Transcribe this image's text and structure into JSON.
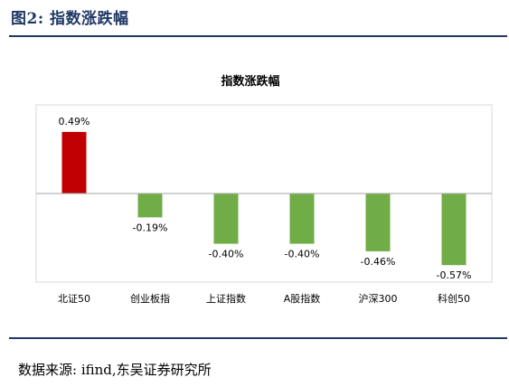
{
  "figure_label": "图2:  指数涨跌幅",
  "source_text": "数据来源:  ifind,东吴证券研究所",
  "chart_data": {
    "type": "bar",
    "title": "指数涨跌幅",
    "categories": [
      "北证50",
      "创业板指",
      "上证指数",
      "A股指数",
      "沪深300",
      "科创50"
    ],
    "values": [
      0.49,
      -0.19,
      -0.4,
      -0.4,
      -0.46,
      -0.57
    ],
    "data_labels": [
      "0.49%",
      "-0.19%",
      "-0.40%",
      "-0.40%",
      "-0.46%",
      "-0.57%"
    ],
    "ylim": [
      -0.72,
      0.72
    ],
    "grid": false,
    "legend": "none",
    "colors": {
      "positive": "#c00000",
      "negative": "#70ad47",
      "title_rule": "#1f3864"
    }
  }
}
